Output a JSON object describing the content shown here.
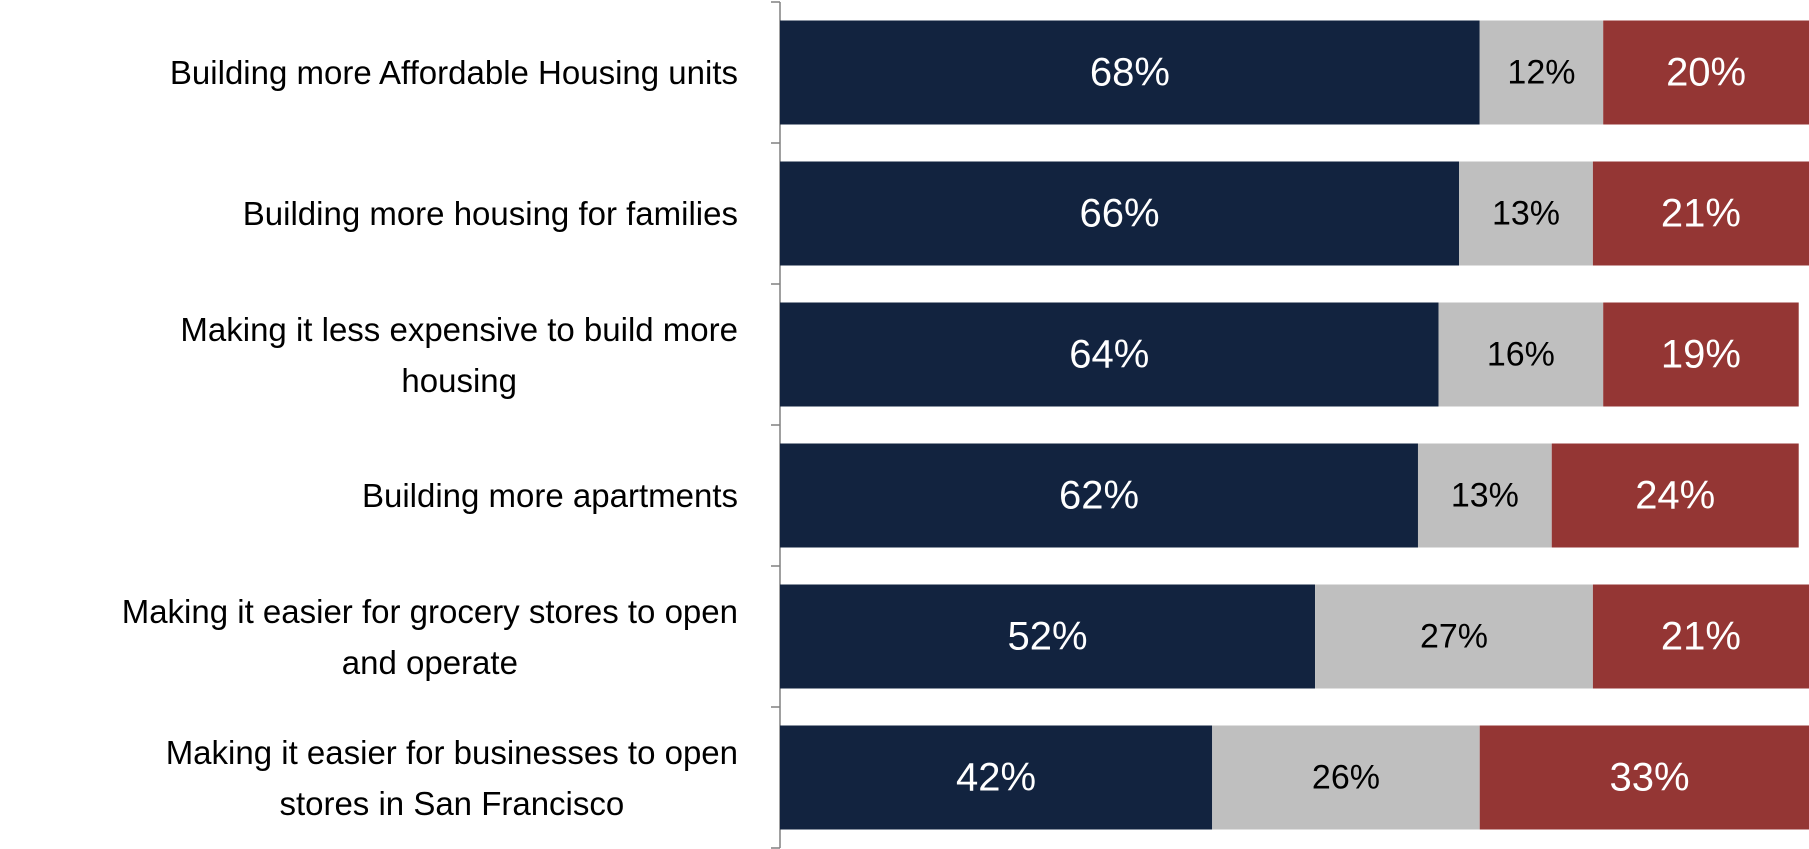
{
  "chart_data": {
    "type": "stacked-bar-horizontal",
    "categories": [
      "Building more Affordable Housing units",
      "Building more housing for families",
      "Making it less expensive to build more\nhousing",
      "Building more apartments",
      "Making it easier for grocery stores to open\nand operate",
      "Making it easier for businesses to open\nstores in San Francisco"
    ],
    "xlim": [
      0,
      100
    ],
    "series": [
      {
        "color": "#12233f",
        "label_color": "#ffffff",
        "values": [
          68,
          66,
          64,
          62,
          52,
          42
        ],
        "value_labels": [
          "68%",
          "66%",
          "64%",
          "62%",
          "52%",
          "42%"
        ]
      },
      {
        "color": "#bfbfbf",
        "label_color": "#000000",
        "values": [
          12,
          13,
          16,
          13,
          27,
          26
        ],
        "value_labels": [
          "12%",
          "13%",
          "16%",
          "13%",
          "27%",
          "26%"
        ]
      },
      {
        "color": "#943634",
        "label_color": "#ffffff",
        "values": [
          20,
          21,
          19,
          24,
          21,
          33
        ],
        "value_labels": [
          "20%",
          "21%",
          "19%",
          "24%",
          "21%",
          "33%"
        ]
      }
    ]
  }
}
